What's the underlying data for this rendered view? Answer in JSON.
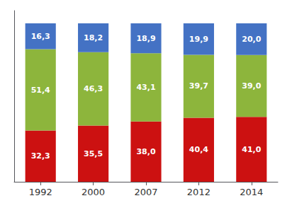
{
  "chart_data": {
    "type": "bar",
    "stacked": true,
    "data_labels": true,
    "grid": false,
    "tick_labels": "x",
    "categories": [
      "1992",
      "2000",
      "2007",
      "2012",
      "2014"
    ],
    "ylim": [
      0,
      108
    ],
    "series": [
      {
        "color": "#cc1111",
        "values": [
          32.3,
          35.5,
          38.0,
          40.4,
          41.0
        ],
        "value_labels": [
          "32,3",
          "35,5",
          "38,0",
          "40,4",
          "41,0"
        ]
      },
      {
        "color": "#8db53c",
        "values": [
          51.4,
          46.3,
          43.1,
          39.7,
          39.0
        ],
        "value_labels": [
          "51,4",
          "46,3",
          "43,1",
          "39,7",
          "39,0"
        ]
      },
      {
        "color": "#4472c4",
        "values": [
          16.3,
          18.2,
          18.9,
          19.9,
          20.0
        ],
        "value_labels": [
          "16,3",
          "18,2",
          "18,9",
          "19,9",
          "20,0"
        ]
      }
    ]
  }
}
